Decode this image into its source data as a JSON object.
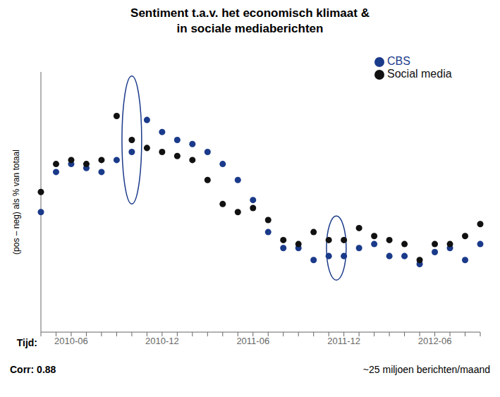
{
  "chart_data": {
    "type": "scatter",
    "title": "Sentiment t.a.v. het economisch klimaat &",
    "subtitle": "in sociale mediaberichten",
    "xlabel": "Tijd:",
    "ylabel": "(pos – neg) als % van totaal",
    "categories": [
      null,
      null,
      "2010-06",
      null,
      null,
      null,
      null,
      null,
      "2010-12",
      null,
      null,
      null,
      null,
      null,
      "2011-06",
      null,
      null,
      null,
      null,
      null,
      "2011-12",
      null,
      null,
      null,
      null,
      null,
      "2012-06",
      null,
      null,
      null
    ],
    "series": [
      {
        "name": "CBS",
        "color": "#1a3a8a",
        "marker": "circle",
        "values": [
          55,
          65,
          67,
          66,
          65,
          68,
          70,
          78,
          75,
          73,
          72,
          70,
          67,
          63,
          58,
          50,
          46,
          46,
          43,
          44,
          44,
          46,
          47,
          44,
          44,
          42,
          45,
          46,
          43,
          47
        ]
      },
      {
        "name": "Social media",
        "color": "#111111",
        "marker": "circle",
        "values": [
          60,
          67,
          68,
          67,
          68,
          79,
          73,
          71,
          70,
          69,
          68,
          63,
          57,
          55,
          56,
          53,
          48,
          47,
          50,
          48,
          48,
          51,
          49,
          48,
          47,
          43,
          47,
          47,
          49,
          52
        ]
      }
    ],
    "ellipses": [
      {
        "x": 6.0,
        "y": 73.0,
        "width": 1.3,
        "height": 32,
        "color": "#1a3a8a"
      },
      {
        "x": 19.5,
        "y": 46.0,
        "width": 1.3,
        "height": 16,
        "color": "#1a3a8a"
      }
    ],
    "ylim": [
      25,
      90
    ],
    "yticks": [],
    "tick_labels": "x",
    "legend": "upper right",
    "grid": false,
    "annotations": [
      "Corr: 0.88",
      "~25 miljoen berichten/maand"
    ]
  }
}
